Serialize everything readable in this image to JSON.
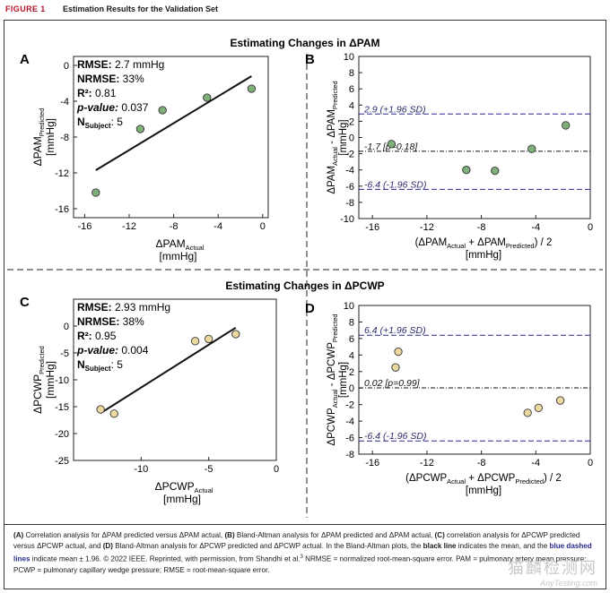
{
  "header": {
    "fig_label": "FIGURE 1",
    "fig_title": "Estimation Results for the Validation Set"
  },
  "sections": {
    "pam_title": "Estimating Changes in ΔPAM",
    "pcwp_title": "Estimating Changes in ΔPCWP"
  },
  "colors": {
    "pam_points": "#7fb07a",
    "pcwp_points": "#ecd8a0",
    "sd_line": "#2a2a8c",
    "sd_text": "#2a2a6a",
    "figure_red": "#b0132a"
  },
  "chart_data": [
    {
      "panel": "A",
      "type": "scatter",
      "title": "",
      "xlabel_main": "ΔPAM",
      "xlabel_sub": "Actual",
      "xlabel_unit": "[mmHg]",
      "ylabel_main": "ΔPAM",
      "ylabel_sub": "Predicted",
      "ylabel_unit": "[mmHg]",
      "xlim": [
        -17,
        0.5
      ],
      "ylim": [
        -17,
        1
      ],
      "xticks": [
        -16,
        -12,
        -8,
        -4,
        0
      ],
      "yticks": [
        0,
        -4,
        -8,
        -12,
        -16
      ],
      "x": [
        -15.0,
        -11.0,
        -9.0,
        -5.0,
        -1.0
      ],
      "y": [
        -14.2,
        -7.1,
        -5.0,
        -3.6,
        -2.6
      ],
      "fit": [
        [
          -15.0,
          -11.7
        ],
        [
          -1.0,
          -1.2
        ]
      ],
      "stats": {
        "rmse_label": "RMSE:",
        "rmse": "2.7 mmHg",
        "nrmse_label": "NRMSE:",
        "nrmse": "33%",
        "r2_label": "R²:",
        "r2": "0.81",
        "p_label": "p-value:",
        "p": "0.037",
        "n_label": "N",
        "n_sub": "Subject",
        "n": "5"
      }
    },
    {
      "panel": "B",
      "type": "scatter",
      "xlabel_main": "(ΔPAM",
      "xlabel_sub1": "Actual",
      "xlabel_mid": " + ΔPAM",
      "xlabel_sub2": "Predicted",
      "xlabel_end": ") / 2",
      "xlabel_unit": "[mmHg]",
      "ylabel_main": "ΔPAM",
      "ylabel_sub1": "Actual",
      "ylabel_mid": " - ΔPAM",
      "ylabel_sub2": "Predicted",
      "ylabel_unit": "[mmHg]",
      "xlim": [
        -17,
        0
      ],
      "ylim": [
        -10,
        10
      ],
      "xticks": [
        -16,
        -12,
        -8,
        -4,
        0
      ],
      "yticks": [
        10,
        8,
        6,
        4,
        2,
        0,
        -2,
        -4,
        -6,
        -8,
        -10
      ],
      "x": [
        -14.6,
        -9.1,
        -7.0,
        -4.3,
        -1.8
      ],
      "y": [
        -0.8,
        -4.0,
        -4.1,
        -1.4,
        1.5
      ],
      "mean": -1.7,
      "upper": 2.9,
      "lower": -6.4,
      "mean_label": "-1.7 [p=0.18]",
      "upper_label": "2.9 (+1.96 SD)",
      "lower_label": "-6.4 (-1.96 SD)"
    },
    {
      "panel": "C",
      "type": "scatter",
      "xlabel_main": "ΔPCWP",
      "xlabel_sub": "Actual",
      "xlabel_unit": "[mmHg]",
      "ylabel_main": "ΔPCWP",
      "ylabel_sub": "Predicted",
      "ylabel_unit": "[mmHg]",
      "xlim": [
        -15,
        0
      ],
      "ylim": [
        -25,
        5
      ],
      "xticks": [
        -10,
        -5,
        0
      ],
      "yticks": [
        0,
        -5,
        -10,
        -15,
        -20,
        -25
      ],
      "x": [
        -13.0,
        -12.0,
        -6.0,
        -5.0,
        -3.0
      ],
      "y": [
        -15.5,
        -16.3,
        -2.8,
        -2.4,
        -1.5
      ],
      "fit": [
        [
          -13.0,
          -16.2
        ],
        [
          -3.0,
          -0.3
        ]
      ],
      "stats": {
        "rmse_label": "RMSE:",
        "rmse": "2.93 mmHg",
        "nrmse_label": "NRMSE:",
        "nrmse": "38%",
        "r2_label": "R²:",
        "r2": "0.95",
        "p_label": "p-value:",
        "p": "0.004",
        "n_label": "N",
        "n_sub": "Subject",
        "n": "5"
      }
    },
    {
      "panel": "D",
      "type": "scatter",
      "xlabel_main": "(ΔPCWP",
      "xlabel_sub1": "Actual",
      "xlabel_mid": " + ΔPCWP",
      "xlabel_sub2": "Predicted",
      "xlabel_end": ") / 2",
      "xlabel_unit": "[mmHg]",
      "ylabel_main": "ΔPCWP",
      "ylabel_sub1": "Actual",
      "ylabel_mid": " - ΔPCWP",
      "ylabel_sub2": "Predicted",
      "ylabel_unit": "[mmHg]",
      "xlim": [
        -17,
        0
      ],
      "ylim": [
        -8,
        10
      ],
      "xticks": [
        -16,
        -12,
        -8,
        -4,
        0
      ],
      "yticks": [
        10,
        8,
        6,
        4,
        2,
        0,
        -2,
        -4,
        -6,
        -8
      ],
      "x": [
        -14.3,
        -14.1,
        -4.6,
        -3.8,
        -2.2
      ],
      "y": [
        2.5,
        4.4,
        -3.0,
        -2.4,
        -1.5
      ],
      "mean": 0.02,
      "upper": 6.4,
      "lower": -6.4,
      "mean_label": "0.02 [p=0.99]",
      "upper_label": "6.4 (+1.96 SD)",
      "lower_label": "-6.4 (-1.96 SD)"
    }
  ],
  "caption": {
    "p1a": "(A)",
    "p1b": " Correlation analysis for ΔPAM predicted versus ΔPAM actual, ",
    "p2a": "(B)",
    "p2b": " Bland-Altman analysis for ΔPAM predicted and ΔPAM actual, ",
    "p3a": "(C)",
    "p3b": " correlation analysis for ΔPCWP predicted versus ΔPCWP actual, and ",
    "p4a": "(D)",
    "p4b": " Bland-Altman analysis for ΔPCWP predicted and ΔPCWP actual. In the Bland-Altman plots, the ",
    "black": "black line",
    "mid": " indicates the mean, and the ",
    "blue": "blue dashed lines",
    "tail": " indicate mean ± 1.96. © 2022 IEEE. Reprinted, with permission, from Shandhi et al.",
    "ref": "3",
    "abbr": " NRMSE = normalized root-mean-square error. PAM = pulmonary artery mean pressure; PCWP = pulmonary capillary wedge pressure; RMSE = root-mean-square error."
  },
  "watermark": {
    "cn": "猫麟检测网",
    "en": "AnyTesting.com"
  }
}
